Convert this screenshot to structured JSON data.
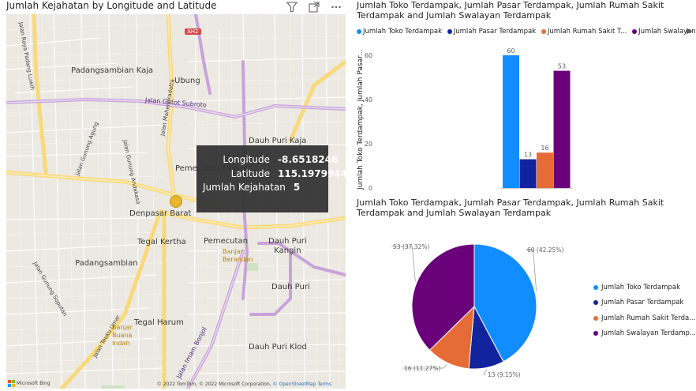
{
  "map": {
    "title": "Jumlah Kejahatan by Longitude and Latitude",
    "icons": [
      "filter-icon",
      "focus-mode-icon",
      "more-options-icon"
    ],
    "badge": "AH2",
    "places": [
      {
        "id": "padangsambian-kaja",
        "label": "Padangsambian Kaja"
      },
      {
        "id": "ubung",
        "label": "Ubung"
      },
      {
        "id": "dauh-puri-kaja",
        "label": "Dauh Puri Kaja"
      },
      {
        "id": "pemecutan-kaja",
        "label": "Pemecutan Kaja"
      },
      {
        "id": "denpasar-barat",
        "label": "Denpasar Barat"
      },
      {
        "id": "tegal-kertha",
        "label": "Tegal Kertha"
      },
      {
        "id": "pemecutan",
        "label": "Pemecutan"
      },
      {
        "id": "dauh-puri-kangin",
        "label": "Dauh Puri\nKangin"
      },
      {
        "id": "banjar-berandan",
        "label": "Banjar\nBerandan"
      },
      {
        "id": "padangsambian",
        "label": "Padangsambian"
      },
      {
        "id": "dauh-puri",
        "label": "Dauh Puri"
      },
      {
        "id": "tegal-harum",
        "label": "Tegal Harum"
      },
      {
        "id": "banjar-buana-indah",
        "label": "Banjar\nBuana\nIndah"
      },
      {
        "id": "dauh-puri-klod",
        "label": "Dauh Puri Klod"
      }
    ],
    "roads": [
      {
        "id": "jalan-gatot-subroto",
        "label": "Jalan Gatot Subroto"
      },
      {
        "id": "jalan-imam-bonjol",
        "label": "Jalan Imam Bonjol"
      },
      {
        "id": "jalan-raya-padang-luwih",
        "label": "Jalan Raya Padang Luwih"
      },
      {
        "id": "jalan-gunung-andakasa",
        "label": "Jalan Gunung Andakasa"
      },
      {
        "id": "jalan-mahendradatta",
        "label": "Jalan Mahendradatta"
      },
      {
        "id": "jalan-gunung-agung",
        "label": "Jalan Gunung Agung"
      },
      {
        "id": "jalan-gunung-soputan",
        "label": "Jalan Gunung Soputan"
      },
      {
        "id": "jalan-teuku-umar",
        "label": "Jalan Teuku Umar"
      }
    ],
    "attribution_brand": "Microsoft Bing",
    "attribution": "© 2022 TomTom, © 2022 Microsoft Corporation,",
    "attribution_links": [
      "© OpenStreetMap",
      "Terms"
    ],
    "tooltip": {
      "rows": [
        {
          "label": "Longitude",
          "value": "-8.6518246"
        },
        {
          "label": "Latitude",
          "value": "115.1979944"
        },
        {
          "label": "Jumlah Kejahatan",
          "value": "5"
        }
      ]
    }
  },
  "bar": {
    "title_line1": "Jumlah Toko Terdampak, Jumlah Pasar Terdampak, Jumlah Rumah Sakit",
    "title_line2": "Terdampak and Jumlah Swalayan Terdampak",
    "legend_labels": [
      "Jumlah Toko Terdampak",
      "Jumlah Pasar Terdampak",
      "Jumlah Rumah Sakit T...",
      "Jumlah Swalayan ..."
    ],
    "legend_arrow": "▶",
    "y_axis_title": "Jumlah Toko Terdampak, Jumlah Pasar..."
  },
  "pie": {
    "title_line1": "Jumlah Toko Terdampak, Jumlah Pasar Terdampak, Jumlah Rumah Sakit",
    "title_line2": "Terdampak and Jumlah Swalayan Terdampak",
    "legend_labels": [
      "Jumlah Toko Terdampak",
      "Jumlah Pasar Terdampak",
      "Jumlah Rumah Sakit Terda...",
      "Jumlah Swalayan Terdamp..."
    ]
  },
  "colors": {
    "toko": "#118DFF",
    "pasar": "#12239E",
    "rumah_sakit": "#E66C37",
    "swalayan": "#6B007B",
    "marker": "#E6B11C",
    "tooltip_bg": "#343434"
  },
  "chart_data": [
    {
      "type": "bar",
      "categories": [
        "Jumlah Toko Terdampak",
        "Jumlah Pasar Terdampak",
        "Jumlah Rumah Sakit Terdampak",
        "Jumlah Swalayan Terdampak"
      ],
      "values": [
        60,
        13,
        16,
        53
      ],
      "data_labels": [
        "60",
        "13",
        "16",
        "53"
      ],
      "ylim": [
        0,
        60
      ],
      "yticks": [
        0,
        20,
        40,
        60
      ],
      "grid": false,
      "legend": "top"
    },
    {
      "type": "pie",
      "categories": [
        "Jumlah Toko Terdampak",
        "Jumlah Pasar Terdampak",
        "Jumlah Rumah Sakit Terdampak",
        "Jumlah Swalayan Terdampak"
      ],
      "values": [
        60,
        13,
        16,
        53
      ],
      "data_labels": [
        "60 (42.25%)",
        "13 (9.15%)",
        "16 (11.27%)",
        "53 (37.32%)"
      ],
      "legend": "right"
    }
  ]
}
